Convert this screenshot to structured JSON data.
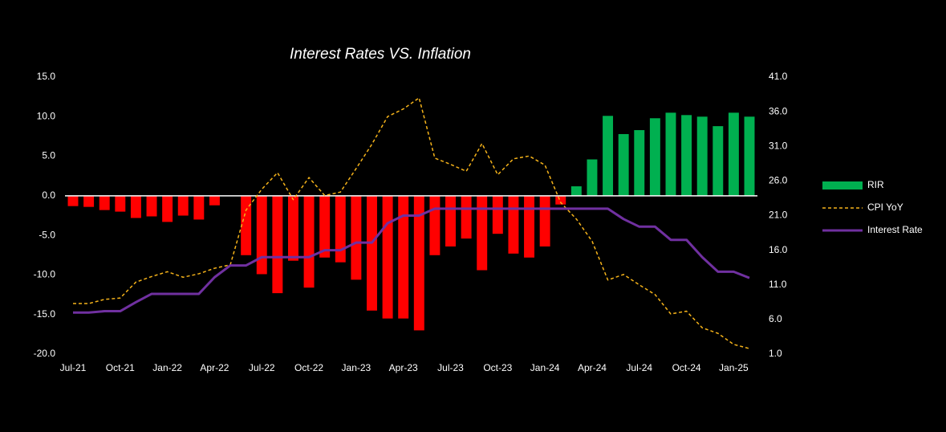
{
  "chart_data": {
    "type": "combo",
    "title": "Interest Rates VS. Inflation",
    "categories": [
      "Jul-21",
      null,
      null,
      "Oct-21",
      null,
      null,
      "Jan-22",
      null,
      null,
      "Apr-22",
      null,
      null,
      "Jul-22",
      null,
      null,
      "Oct-22",
      null,
      null,
      "Jan-23",
      null,
      null,
      "Apr-23",
      null,
      null,
      "Jul-23",
      null,
      null,
      "Oct-23",
      null,
      null,
      "Jan-24",
      null,
      null,
      "Apr-24",
      null,
      null,
      "Jul-24",
      null,
      null,
      "Oct-24",
      null,
      null,
      "Jan-25",
      null
    ],
    "series": [
      {
        "name": "RIR",
        "type": "bar",
        "color": "#00b050",
        "negative_color": "#ff0000",
        "axis": "y",
        "values": [
          -1.3,
          -1.4,
          -1.8,
          -2.0,
          -2.8,
          -2.6,
          -3.3,
          -2.5,
          -3.0,
          -1.2,
          0,
          -7.5,
          -9.9,
          -12.3,
          -8.2,
          -11.6,
          -7.8,
          -8.4,
          -10.6,
          -14.5,
          -15.5,
          -15.5,
          -17.0,
          -7.5,
          -6.4,
          -5.4,
          -9.4,
          -4.8,
          -7.3,
          -7.8,
          -6.4,
          -1.1,
          1.2,
          4.6,
          10.1,
          7.8,
          8.3,
          9.8,
          10.5,
          10.2,
          10.0,
          8.8,
          10.5,
          10.0
        ]
      },
      {
        "name": "CPI YoY",
        "type": "line",
        "color": "#f5b31a",
        "dashed": true,
        "axis": "y2",
        "values": [
          8.3,
          8.3,
          8.9,
          9.1,
          11.4,
          12.2,
          12.9,
          12.1,
          12.6,
          13.4,
          13.9,
          21.8,
          24.8,
          27.2,
          23.3,
          26.5,
          23.9,
          24.4,
          27.8,
          31.3,
          35.3,
          36.4,
          38.0,
          29.3,
          28.4,
          27.4,
          31.4,
          26.9,
          29.2,
          29.6,
          28.3,
          22.9,
          20.5,
          17.3,
          11.7,
          12.5,
          11.0,
          9.6,
          6.8,
          7.2,
          4.8,
          4.0,
          2.4,
          1.8
        ]
      },
      {
        "name": "Interest Rate",
        "type": "line",
        "color": "#7030a0",
        "dashed": false,
        "axis": "y2",
        "values": [
          7.0,
          7.0,
          7.2,
          7.2,
          8.5,
          9.7,
          9.7,
          9.7,
          9.7,
          12.1,
          13.8,
          13.8,
          15.0,
          15.0,
          15.0,
          15.0,
          16.0,
          16.0,
          17.1,
          17.1,
          19.9,
          21.0,
          21.0,
          22.0,
          22.0,
          22.0,
          22.0,
          22.0,
          22.0,
          22.0,
          22.0,
          22.0,
          22.0,
          22.0,
          22.0,
          20.5,
          19.4,
          19.4,
          17.5,
          17.5,
          15.0,
          12.9,
          12.9,
          12.0
        ]
      }
    ],
    "ylim": [
      -20,
      15
    ],
    "yticks": [
      {
        "value": -20,
        "label": "-20.0"
      },
      {
        "value": -15,
        "label": "-15.0"
      },
      {
        "value": -10,
        "label": "-10.0"
      },
      {
        "value": -5,
        "label": "-5.0"
      },
      {
        "value": 0,
        "label": "0.0"
      },
      {
        "value": 5,
        "label": "5.0"
      },
      {
        "value": 10,
        "label": "10.0"
      },
      {
        "value": 15,
        "label": "15.0"
      }
    ],
    "y2lim": [
      1,
      41
    ],
    "y2ticks": [
      {
        "value": 1,
        "label": "1.0"
      },
      {
        "value": 6,
        "label": "6.0"
      },
      {
        "value": 11,
        "label": "11.0"
      },
      {
        "value": 16,
        "label": "16.0"
      },
      {
        "value": 21,
        "label": "21.0"
      },
      {
        "value": 26,
        "label": "26.0"
      },
      {
        "value": 31,
        "label": "31.0"
      },
      {
        "value": 36,
        "label": "36.0"
      },
      {
        "value": 41,
        "label": "41.0"
      }
    ],
    "grid": false,
    "legend": "right"
  }
}
